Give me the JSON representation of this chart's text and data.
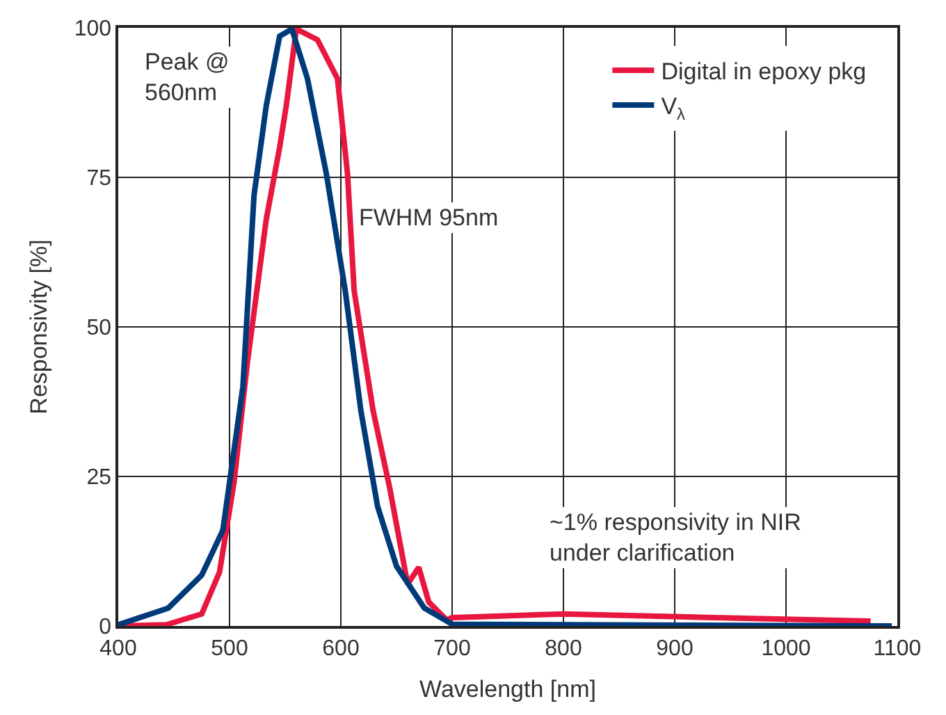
{
  "chart_data": {
    "type": "line",
    "xlabel": "Wavelength [nm]",
    "ylabel": "Responsivity [%]",
    "xlim": [
      400,
      1100
    ],
    "xticks": [
      400,
      500,
      600,
      700,
      800,
      900,
      1000,
      1100
    ],
    "ylim": [
      0,
      100
    ],
    "yticks": [
      0,
      25,
      50,
      75,
      100
    ],
    "grid": true,
    "legend": "top right",
    "line_style": "solid",
    "marker": "none",
    "annotations": [
      "Peak @\n560nm",
      "FWHM 95nm",
      "~1% responsivity in NIR\nunder clarification"
    ],
    "series": [
      {
        "name": "Digital in epoxy pkg",
        "color": "#e8173f",
        "x": [
          400,
          443,
          475,
          491,
          504,
          516,
          533,
          545,
          551,
          560,
          579,
          597,
          606,
          612,
          629,
          644,
          660,
          670,
          679,
          695,
          700,
          800,
          912,
          1076
        ],
        "values": [
          0,
          0.2,
          2,
          9,
          24,
          44,
          68,
          80,
          87,
          99.8,
          98,
          91.5,
          75.6,
          56,
          36,
          23,
          7,
          9.8,
          4,
          1,
          1.4,
          2,
          1.5,
          0.8
        ]
      },
      {
        "name": "V$_{λ}$",
        "color": "#003a78",
        "x": [
          400,
          445,
          475,
          494,
          512,
          522,
          533,
          545,
          556,
          570,
          587,
          604,
          618,
          633,
          650,
          675,
          700,
          1095
        ],
        "values": [
          0.2,
          3,
          8.5,
          16,
          40,
          72,
          87,
          98.6,
          99.8,
          91.5,
          75.6,
          56,
          36,
          20,
          10,
          3,
          0.3,
          0
        ]
      }
    ]
  }
}
